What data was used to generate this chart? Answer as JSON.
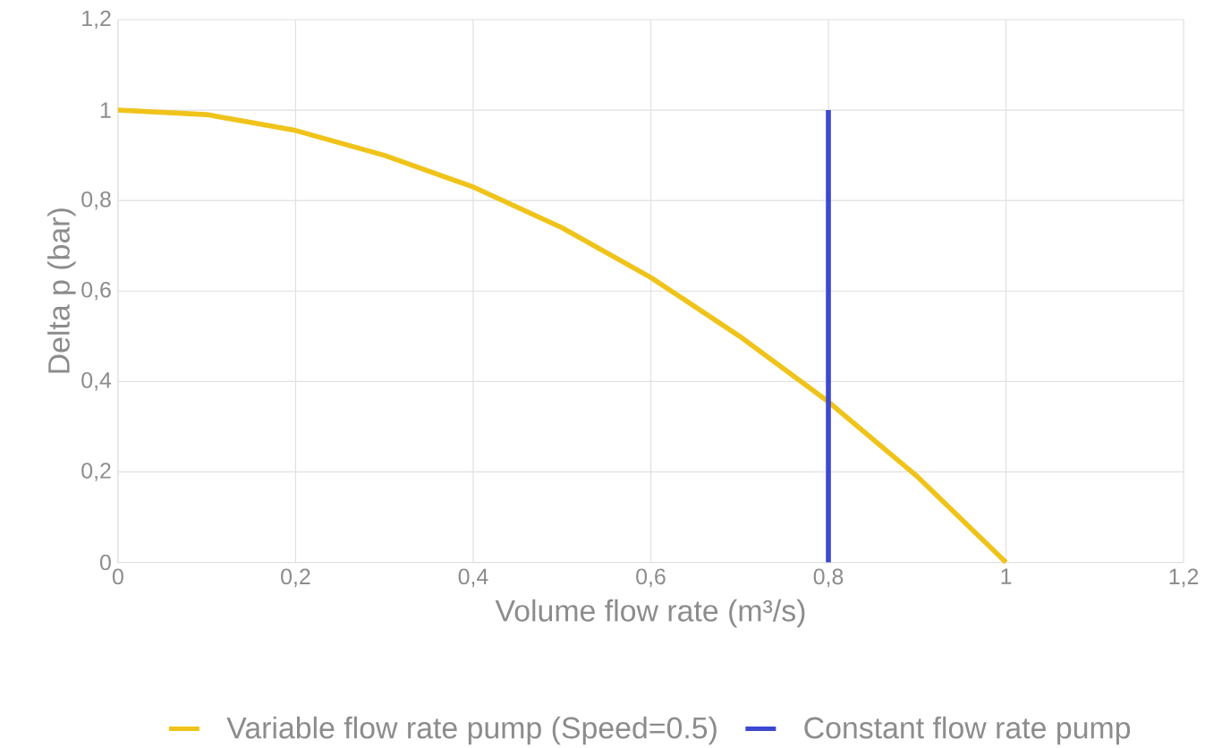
{
  "chart_data": {
    "type": "line",
    "xlabel": "Volume flow rate (m³/s)",
    "ylabel": "Delta p (bar)",
    "series": [
      {
        "name": "Variable flow rate pump (Speed=0.5)",
        "color": "#f0c31a",
        "x": [
          0,
          0.1,
          0.2,
          0.3,
          0.4,
          0.5,
          0.6,
          0.7,
          0.8,
          0.9,
          1.0
        ],
        "values": [
          1,
          0.99,
          0.955,
          0.9,
          0.83,
          0.74,
          0.63,
          0.5,
          0.355,
          0.19,
          0
        ]
      },
      {
        "name": "Constant flow rate pump",
        "color": "#3c48d0",
        "x": [
          0.8,
          0.8
        ],
        "values": [
          0,
          1
        ]
      }
    ],
    "xlim": [
      0,
      1.2
    ],
    "ylim": [
      0,
      1.2
    ],
    "xticks": [
      0,
      {
        "value": 0.2,
        "label": "0,2"
      },
      {
        "value": 0.4,
        "label": "0,4"
      },
      {
        "value": 0.6,
        "label": "0,6"
      },
      {
        "value": 0.8,
        "label": "0,8"
      },
      1,
      {
        "value": 1.2,
        "label": "1,2"
      }
    ],
    "yticks": [
      0,
      {
        "value": 0.2,
        "label": "0,2"
      },
      {
        "value": 0.4,
        "label": "0,4"
      },
      {
        "value": 0.6,
        "label": "0,6"
      },
      {
        "value": 0.8,
        "label": "0,8"
      },
      1,
      {
        "value": 1.2,
        "label": "1,2"
      }
    ],
    "grid": true,
    "legend": "bottom",
    "marker": "none",
    "line_style": "solid"
  }
}
